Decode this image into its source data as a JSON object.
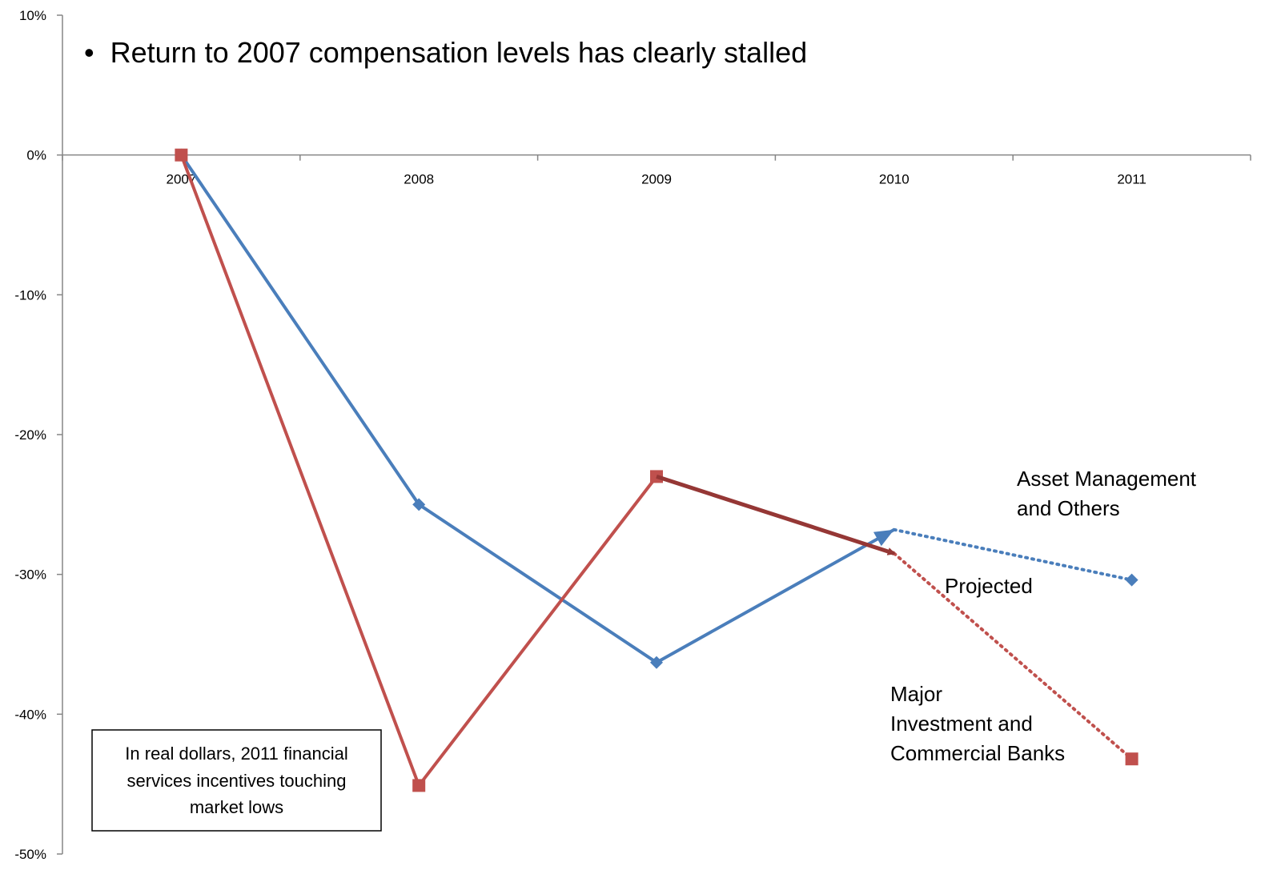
{
  "chart_data": {
    "type": "line",
    "headline": "Return to 2007 compensation levels has clearly stalled",
    "headline_bullet": "•",
    "x": [
      "2007",
      "2008",
      "2009",
      "2010",
      "2011"
    ],
    "ylim": [
      -50,
      10
    ],
    "yticks": [
      10,
      0,
      -10,
      -20,
      -30,
      -40,
      -50
    ],
    "ytick_labels": [
      "10%",
      "0%",
      "-10%",
      "-20%",
      "-30%",
      "-40%",
      "-50%"
    ],
    "series": [
      {
        "name": "Asset Management and Others",
        "label_lines": [
          "Asset Management",
          "and Others"
        ],
        "color": "#4a7ebb",
        "marker": "diamond",
        "values": [
          0,
          -25,
          -36.3,
          -26.8,
          -30.4
        ],
        "projected_from_index": 3
      },
      {
        "name": "Major Investment and Commercial Banks",
        "label_lines": [
          "Major",
          "Investment and",
          "Commercial Banks"
        ],
        "color": "#c0504d",
        "marker": "square",
        "values": [
          0,
          -45.1,
          -23,
          -28.5,
          -43.2
        ],
        "projected_from_index": 3
      }
    ],
    "annotations": {
      "projected_label": "Projected",
      "note_box_lines": [
        "In real dollars, 2011 financial",
        "services incentives touching",
        "market lows"
      ],
      "arrow_color": "#953735"
    },
    "grid": false,
    "legend": "none"
  }
}
